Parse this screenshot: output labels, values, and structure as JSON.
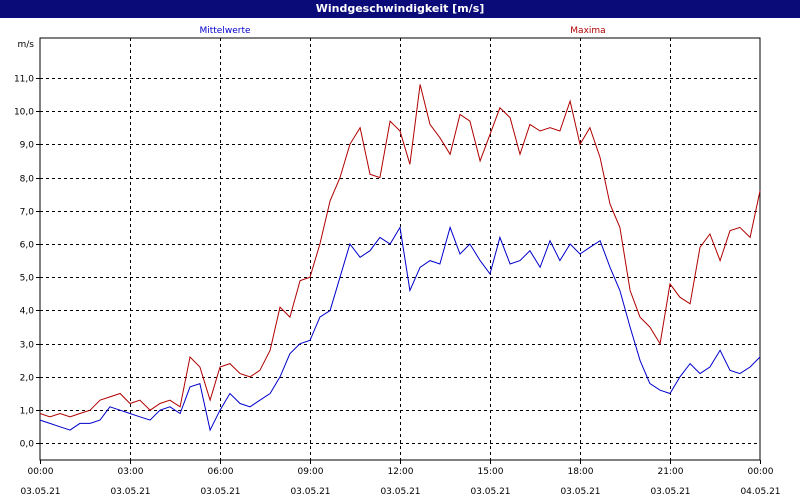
{
  "window": {
    "title": "Windgeschwindigkeit [m/s]"
  },
  "colors": {
    "mean": "#0000cc",
    "max": "#b00000",
    "axis": "#000000",
    "grid": "#000000",
    "titlebar": "#0a0a78"
  },
  "chart_data": {
    "type": "line",
    "title": "Windgeschwindigkeit [m/s]",
    "ylabel": "m/s",
    "xlabel": "",
    "ylim": [
      -0.5,
      12.2
    ],
    "xlim_hours": [
      0,
      24
    ],
    "grid": true,
    "y_ticks": [
      "0,0",
      "1,0",
      "2,0",
      "3,0",
      "4,0",
      "5,0",
      "6,0",
      "7,0",
      "8,0",
      "9,0",
      "10,0",
      "11,0"
    ],
    "x_ticks": [
      {
        "time": "00:00",
        "date": "03.05.21"
      },
      {
        "time": "03:00",
        "date": "03.05.21"
      },
      {
        "time": "06:00",
        "date": "03.05.21"
      },
      {
        "time": "09:00",
        "date": "03.05.21"
      },
      {
        "time": "12:00",
        "date": "03.05.21"
      },
      {
        "time": "15:00",
        "date": "03.05.21"
      },
      {
        "time": "18:00",
        "date": "03.05.21"
      },
      {
        "time": "21:00",
        "date": "03.05.21"
      },
      {
        "time": "00:00",
        "date": "04.05.21"
      }
    ],
    "x_hours": [
      0,
      0.33,
      0.67,
      1,
      1.33,
      1.67,
      2,
      2.33,
      2.67,
      3,
      3.33,
      3.67,
      4,
      4.33,
      4.67,
      5,
      5.33,
      5.67,
      6,
      6.33,
      6.67,
      7,
      7.33,
      7.67,
      8,
      8.33,
      8.67,
      9,
      9.33,
      9.67,
      10,
      10.33,
      10.67,
      11,
      11.33,
      11.67,
      12,
      12.33,
      12.67,
      13,
      13.33,
      13.67,
      14,
      14.33,
      14.67,
      15,
      15.33,
      15.67,
      16,
      16.33,
      16.67,
      17,
      17.33,
      17.67,
      18,
      18.33,
      18.67,
      19,
      19.33,
      19.67,
      20,
      20.33,
      20.67,
      21,
      21.33,
      21.67,
      22,
      22.33,
      22.67,
      23,
      23.33,
      23.67,
      24
    ],
    "series": [
      {
        "name": "Mittelwerte",
        "color": "#0000cc",
        "values": [
          0.7,
          0.6,
          0.5,
          0.4,
          0.6,
          0.6,
          0.7,
          1.1,
          1.0,
          0.9,
          0.8,
          0.7,
          1.0,
          1.1,
          0.9,
          1.7,
          1.8,
          0.4,
          1.0,
          1.5,
          1.2,
          1.1,
          1.3,
          1.5,
          2.0,
          2.7,
          3.0,
          3.1,
          3.8,
          4.0,
          5.0,
          6.0,
          5.6,
          5.8,
          6.2,
          6.0,
          6.5,
          4.6,
          5.3,
          5.5,
          5.4,
          6.5,
          5.7,
          6.0,
          5.5,
          5.1,
          6.2,
          5.4,
          5.5,
          5.8,
          5.3,
          6.1,
          5.5,
          6.0,
          5.7,
          5.9,
          6.1,
          5.3,
          4.6,
          3.5,
          2.5,
          1.8,
          1.6,
          1.5,
          2.0,
          2.4,
          2.1,
          2.3,
          2.8,
          2.2,
          2.1,
          2.3,
          2.6
        ]
      },
      {
        "name": "Maxima",
        "color": "#b00000",
        "values": [
          0.9,
          0.8,
          0.9,
          0.8,
          0.9,
          1.0,
          1.3,
          1.4,
          1.5,
          1.2,
          1.3,
          1.0,
          1.2,
          1.3,
          1.1,
          2.6,
          2.3,
          1.3,
          2.3,
          2.4,
          2.1,
          2.0,
          2.2,
          2.8,
          4.1,
          3.8,
          4.9,
          5.0,
          6.0,
          7.3,
          8.0,
          9.0,
          9.5,
          8.1,
          8.0,
          9.7,
          9.4,
          8.4,
          10.8,
          9.6,
          9.2,
          8.7,
          9.9,
          9.7,
          8.5,
          9.3,
          10.1,
          9.8,
          8.7,
          9.6,
          9.4,
          9.5,
          9.4,
          10.3,
          9.0,
          9.5,
          8.6,
          7.2,
          6.5,
          4.6,
          3.8,
          3.5,
          3.0,
          4.8,
          4.4,
          4.2,
          5.9,
          6.3,
          5.5,
          6.4,
          6.5,
          6.2,
          7.6
        ]
      }
    ]
  }
}
